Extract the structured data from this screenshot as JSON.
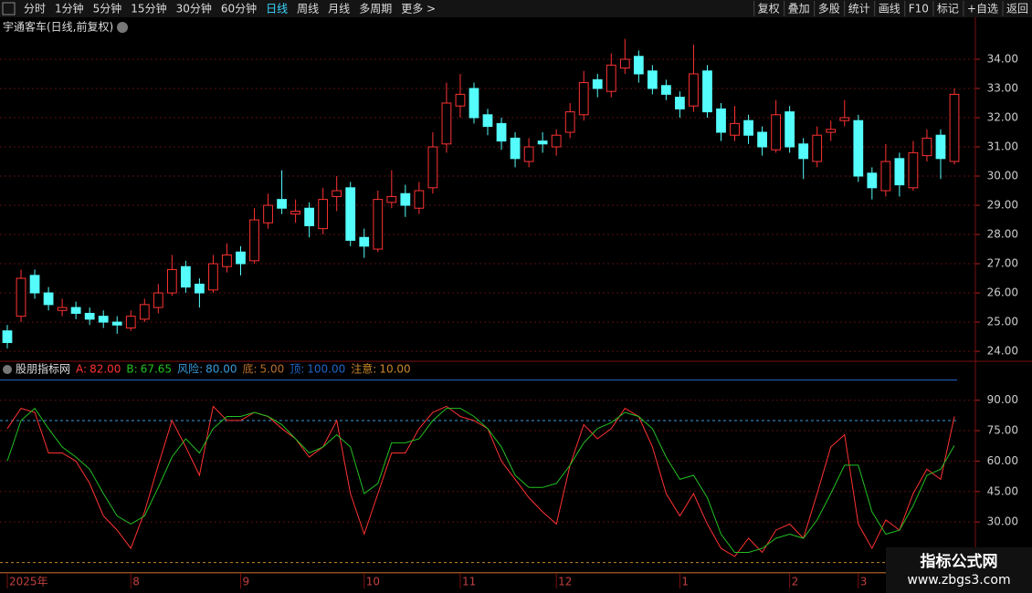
{
  "toolbar": {
    "left": [
      {
        "label": "分时"
      },
      {
        "label": "1分钟"
      },
      {
        "label": "5分钟"
      },
      {
        "label": "15分钟"
      },
      {
        "label": "30分钟"
      },
      {
        "label": "60分钟"
      },
      {
        "label": "日线",
        "active": true
      },
      {
        "label": "周线"
      },
      {
        "label": "月线"
      },
      {
        "label": "多周期"
      },
      {
        "label": "更多 >"
      }
    ],
    "right": [
      "复权",
      "叠加",
      "多股",
      "统计",
      "画线",
      "F10",
      "标记",
      "+自选",
      "返回"
    ]
  },
  "watermark": {
    "title": "指标公式网",
    "url": "www.zbgs3.com"
  },
  "chart_data": [
    {
      "type": "candlestick",
      "title": "宇通客车(日线,前复权)",
      "up_color": "#ff3232",
      "down_color": "#54fcfc",
      "grid": true,
      "ylim": [
        23.69,
        34.78
      ],
      "yticks": [
        {
          "value": 24,
          "label": "24.00"
        },
        {
          "value": 25,
          "label": "25.00"
        },
        {
          "value": 26,
          "label": "26.00"
        },
        {
          "value": 27,
          "label": "27.00"
        },
        {
          "value": 28,
          "label": "28.00"
        },
        {
          "value": 29,
          "label": "29.00"
        },
        {
          "value": 30,
          "label": "30.00"
        },
        {
          "value": 31,
          "label": "31.00"
        },
        {
          "value": 32,
          "label": "32.00"
        },
        {
          "value": 33,
          "label": "33.00"
        },
        {
          "value": 34,
          "label": "34.00"
        }
      ],
      "categories": [
        "2025年",
        null,
        null,
        null,
        null,
        null,
        null,
        null,
        null,
        "8",
        null,
        null,
        null,
        null,
        null,
        null,
        null,
        "9",
        null,
        null,
        null,
        null,
        null,
        null,
        null,
        null,
        "10",
        null,
        null,
        null,
        null,
        null,
        null,
        "11",
        null,
        null,
        null,
        null,
        null,
        null,
        "12",
        null,
        null,
        null,
        null,
        null,
        null,
        null,
        null,
        "1",
        null,
        null,
        null,
        null,
        null,
        null,
        null,
        "2",
        null,
        null,
        null,
        null,
        "3",
        null,
        null,
        null,
        null,
        null,
        null,
        null
      ],
      "ohlc": [
        [
          24.7,
          24.9,
          24.1,
          24.3
        ],
        [
          25.2,
          26.8,
          25.0,
          26.5
        ],
        [
          26.6,
          26.8,
          25.8,
          26.0
        ],
        [
          26.0,
          26.2,
          25.4,
          25.6
        ],
        [
          25.4,
          25.8,
          25.2,
          25.5
        ],
        [
          25.5,
          25.7,
          25.1,
          25.3
        ],
        [
          25.3,
          25.5,
          24.9,
          25.1
        ],
        [
          25.2,
          25.4,
          24.8,
          25.0
        ],
        [
          25.0,
          25.2,
          24.6,
          24.9
        ],
        [
          24.8,
          25.4,
          24.7,
          25.2
        ],
        [
          25.1,
          25.8,
          25.0,
          25.6
        ],
        [
          25.5,
          26.3,
          25.3,
          26.0
        ],
        [
          26.0,
          27.3,
          25.9,
          26.8
        ],
        [
          26.9,
          27.1,
          26.0,
          26.2
        ],
        [
          26.3,
          26.5,
          25.5,
          26.0
        ],
        [
          26.1,
          27.3,
          26.0,
          27.0
        ],
        [
          26.9,
          27.7,
          26.7,
          27.3
        ],
        [
          27.4,
          27.6,
          26.6,
          27.0
        ],
        [
          27.1,
          28.9,
          27.0,
          28.5
        ],
        [
          28.4,
          29.4,
          28.2,
          29.0
        ],
        [
          29.2,
          30.2,
          28.7,
          28.9
        ],
        [
          28.7,
          29.2,
          28.4,
          28.8
        ],
        [
          28.9,
          29.1,
          27.9,
          28.3
        ],
        [
          28.2,
          29.6,
          28.0,
          29.2
        ],
        [
          29.3,
          30.0,
          28.8,
          29.5
        ],
        [
          29.6,
          29.8,
          27.6,
          27.8
        ],
        [
          27.9,
          28.2,
          27.2,
          27.6
        ],
        [
          27.5,
          29.5,
          27.4,
          29.2
        ],
        [
          29.1,
          30.2,
          28.9,
          29.3
        ],
        [
          29.4,
          29.7,
          28.6,
          29.0
        ],
        [
          28.9,
          29.8,
          28.7,
          29.5
        ],
        [
          29.6,
          31.5,
          29.4,
          31.0
        ],
        [
          31.1,
          33.2,
          30.8,
          32.5
        ],
        [
          32.4,
          33.5,
          32.0,
          32.8
        ],
        [
          33.0,
          33.2,
          31.8,
          32.0
        ],
        [
          32.1,
          32.3,
          31.4,
          31.7
        ],
        [
          31.8,
          32.0,
          30.9,
          31.2
        ],
        [
          31.3,
          31.5,
          30.3,
          30.6
        ],
        [
          30.5,
          31.3,
          30.3,
          31.0
        ],
        [
          31.2,
          31.5,
          30.8,
          31.1
        ],
        [
          31.0,
          31.6,
          30.7,
          31.4
        ],
        [
          31.5,
          32.5,
          31.3,
          32.2
        ],
        [
          32.1,
          33.6,
          31.9,
          33.2
        ],
        [
          33.3,
          33.5,
          32.7,
          33.0
        ],
        [
          32.9,
          34.2,
          32.7,
          33.8
        ],
        [
          33.7,
          34.7,
          33.5,
          34.0
        ],
        [
          34.1,
          34.3,
          33.2,
          33.5
        ],
        [
          33.6,
          33.8,
          32.8,
          33.0
        ],
        [
          33.1,
          33.3,
          32.6,
          32.8
        ],
        [
          32.7,
          32.9,
          32.0,
          32.3
        ],
        [
          32.4,
          34.5,
          32.2,
          33.5
        ],
        [
          33.6,
          33.8,
          32.0,
          32.2
        ],
        [
          32.3,
          32.5,
          31.2,
          31.5
        ],
        [
          31.4,
          32.4,
          31.2,
          31.8
        ],
        [
          31.9,
          32.1,
          31.1,
          31.4
        ],
        [
          31.5,
          31.7,
          30.7,
          31.0
        ],
        [
          30.9,
          32.6,
          30.8,
          32.1
        ],
        [
          32.2,
          32.4,
          30.8,
          31.0
        ],
        [
          31.1,
          31.3,
          29.9,
          30.6
        ],
        [
          30.5,
          31.7,
          30.3,
          31.4
        ],
        [
          31.5,
          31.9,
          31.2,
          31.6
        ],
        [
          31.9,
          32.6,
          31.7,
          32.0
        ],
        [
          31.9,
          32.1,
          29.8,
          30.0
        ],
        [
          30.1,
          30.3,
          29.2,
          29.6
        ],
        [
          29.5,
          31.1,
          29.3,
          30.5
        ],
        [
          30.6,
          30.8,
          29.3,
          29.7
        ],
        [
          29.6,
          31.2,
          29.5,
          30.8
        ],
        [
          30.7,
          31.6,
          30.5,
          31.3
        ],
        [
          31.4,
          31.6,
          29.9,
          30.6
        ],
        [
          30.5,
          33.0,
          30.4,
          32.8
        ]
      ]
    },
    {
      "type": "line",
      "title": "股朋指标网",
      "grid": true,
      "ylim": [
        4,
        102
      ],
      "yticks": [
        {
          "value": 30,
          "label": "30.00"
        },
        {
          "value": 45,
          "label": "45.00"
        },
        {
          "value": 60,
          "label": "60.00"
        },
        {
          "value": 75,
          "label": "75.00"
        },
        {
          "value": 90,
          "label": "90.00"
        }
      ],
      "series": [
        {
          "name": "A:",
          "color": "#ff3232",
          "value_label": "82.00",
          "values": [
            76,
            86,
            84,
            64,
            64,
            60,
            49,
            33,
            26,
            17,
            35,
            58,
            80,
            67,
            53,
            87,
            80,
            80,
            84,
            82,
            76,
            71,
            62,
            67,
            80,
            44,
            24,
            44,
            64,
            64,
            76,
            84,
            87,
            82,
            80,
            76,
            60,
            51,
            42,
            35,
            29,
            58,
            78,
            71,
            76,
            86,
            82,
            67,
            44,
            33,
            44,
            29,
            17,
            13,
            22,
            15,
            26,
            29,
            22,
            44,
            67,
            73,
            29,
            17,
            31,
            26,
            44,
            56,
            51,
            82
          ]
        },
        {
          "name": "B:",
          "color": "#22c022",
          "value_label": "67.65",
          "values": [
            60,
            80,
            86,
            76,
            67,
            62,
            56,
            44,
            33,
            29,
            33,
            47,
            62,
            71,
            64,
            76,
            82,
            82,
            84,
            82,
            78,
            71,
            64,
            67,
            73,
            67,
            44,
            49,
            69,
            69,
            71,
            80,
            86,
            86,
            82,
            76,
            67,
            53,
            47,
            47,
            49,
            58,
            69,
            76,
            79,
            84,
            82,
            76,
            62,
            51,
            53,
            42,
            24,
            15,
            15,
            17,
            22,
            24,
            22,
            31,
            44,
            58,
            58,
            35,
            24,
            26,
            38,
            53,
            56,
            67.65
          ]
        }
      ],
      "ref_lines": [
        {
          "name": "风险:",
          "value": 80,
          "value_label": "80.00",
          "color": "#3a9ad9",
          "dash": true
        },
        {
          "name": "底:",
          "value": 5,
          "value_label": "5.00",
          "color": "#b8702a",
          "dash": false
        },
        {
          "name": "顶:",
          "value": 100,
          "value_label": "100.00",
          "color": "#1f66c8",
          "dash": false
        },
        {
          "name": "注意:",
          "value": 10,
          "value_label": "10.00",
          "color": "#c8862a",
          "dash": true
        }
      ]
    }
  ]
}
